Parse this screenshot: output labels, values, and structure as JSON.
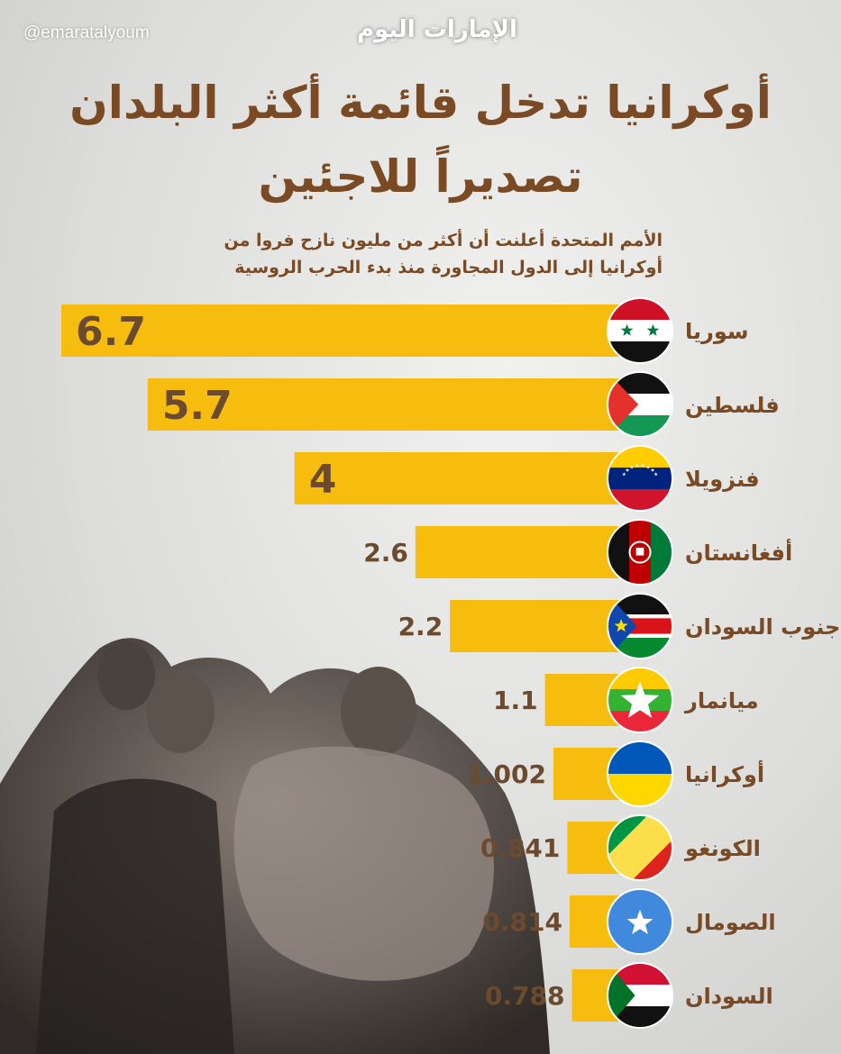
{
  "header": {
    "handle": "@emaratalyoum",
    "logo_text": "الإمارات اليوم",
    "title_line1": "أوكرانيا تدخل قائمة أكثر البلدان",
    "title_line2": "تصديراً للاجئين",
    "subtitle_line1": "الأمم المتحدة أعلنت أن أكثر من  مليون نازح فروا من",
    "subtitle_line2": "أوكرانيا إلى الدول المجاورة منذ بدء الحرب الروسية"
  },
  "colors": {
    "bar": "#f6bd0f",
    "title": "#7a4a24",
    "value_text": "#6b4a2e"
  },
  "chart_data": {
    "type": "bar",
    "orientation": "horizontal",
    "categories": [
      "سوريا",
      "فلسطين",
      "فنزويلا",
      "أفغانستان",
      "جنوب السودان",
      "ميانمار",
      "أوكرانيا",
      "الكونغو",
      "الصومال",
      "السودان"
    ],
    "values": [
      6.7,
      5.7,
      4,
      2.6,
      2.2,
      1.1,
      1.002,
      0.841,
      0.814,
      0.788
    ],
    "value_labels": [
      "6.7",
      "5.7",
      "4",
      "2.6",
      "2.2",
      "1.1",
      "1.002",
      "0.841",
      "0.814",
      "0.788"
    ],
    "flags": [
      "syria-flag-icon",
      "palestine-flag-icon",
      "venezuela-flag-icon",
      "afghanistan-flag-icon",
      "south-sudan-flag-icon",
      "myanmar-flag-icon",
      "ukraine-flag-icon",
      "congo-flag-icon",
      "somalia-flag-icon",
      "sudan-flag-icon"
    ],
    "title": "أوكرانيا تدخل قائمة أكثر البلدان تصديراً للاجئين",
    "xlabel": "",
    "ylabel": "",
    "grid": false,
    "legend": "none"
  }
}
